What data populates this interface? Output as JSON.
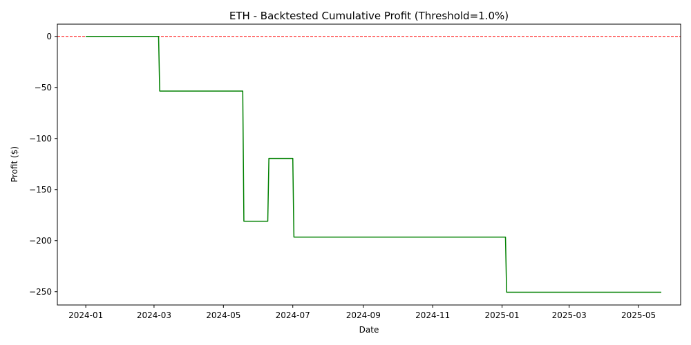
{
  "chart_data": {
    "type": "line",
    "title": "ETH - Backtested Cumulative Profit (Threshold=1.0%)",
    "xlabel": "Date",
    "ylabel": "Profit ($)",
    "x_ticks": [
      "2024-01",
      "2024-03",
      "2024-05",
      "2024-07",
      "2024-09",
      "2024-11",
      "2025-01",
      "2025-03",
      "2025-05"
    ],
    "y_ticks": [
      0,
      -50,
      -100,
      -150,
      -200,
      -250
    ],
    "xlim": [
      "2023-12-07",
      "2025-06-07"
    ],
    "ylim": [
      -263,
      12
    ],
    "grid": false,
    "reference_line": {
      "y": 0,
      "color": "#ff0000",
      "style": "dashed"
    },
    "series": [
      {
        "color": "#008000",
        "points": [
          {
            "x": "2024-01-01",
            "y": 0
          },
          {
            "x": "2024-03-05",
            "y": 0
          },
          {
            "x": "2024-03-06",
            "y": -53.5
          },
          {
            "x": "2024-05-18",
            "y": -53.5
          },
          {
            "x": "2024-05-19",
            "y": -181
          },
          {
            "x": "2024-06-09",
            "y": -181
          },
          {
            "x": "2024-06-10",
            "y": -119.5
          },
          {
            "x": "2024-07-01",
            "y": -119.5
          },
          {
            "x": "2024-07-02",
            "y": -196.5
          },
          {
            "x": "2025-01-04",
            "y": -196.5
          },
          {
            "x": "2025-01-05",
            "y": -250.5
          },
          {
            "x": "2025-05-21",
            "y": -250.5
          }
        ]
      }
    ]
  }
}
